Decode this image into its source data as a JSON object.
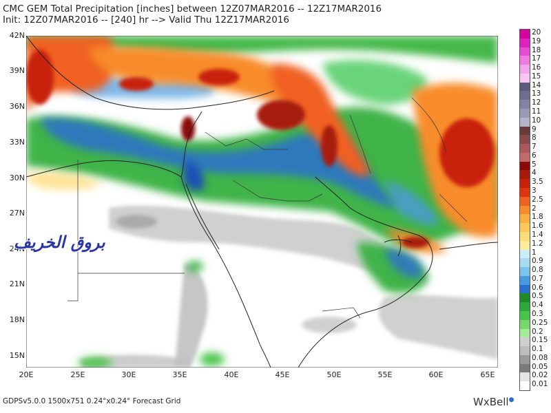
{
  "header": {
    "line1": "CMC GEM Total Precipitation [inches] between 12Z07MAR2016 -- 12Z17MAR2016",
    "line2": "Init: 12Z07MAR2016 -- [240] hr --> Valid Thu 12Z17MAR2016"
  },
  "map": {
    "lat_labels": [
      "42N",
      "39N",
      "36N",
      "33N",
      "30N",
      "27N",
      "24N",
      "21N",
      "18N",
      "15N"
    ],
    "lon_labels": [
      "20E",
      "25E",
      "30E",
      "35E",
      "40E",
      "45E",
      "50E",
      "55E",
      "60E",
      "65E"
    ],
    "watermark": "بروق الخريف"
  },
  "legend": {
    "labels": [
      "20",
      "19",
      "18",
      "17",
      "16",
      "15",
      "14",
      "13",
      "12",
      "11",
      "10",
      "9",
      "8",
      "7",
      "6",
      "5",
      "4",
      "3.5",
      "3",
      "2.5",
      "2",
      "1.8",
      "1.6",
      "1.4",
      "1.2",
      "1",
      "0.9",
      "0.8",
      "0.7",
      "0.6",
      "0.5",
      "0.4",
      "0.3",
      "0.25",
      "0.2",
      "0.15",
      "0.1",
      "0.08",
      "0.05",
      "0.02",
      "0.01"
    ],
    "colors": [
      "#d6009e",
      "#e020c0",
      "#e84cd2",
      "#ef7ae0",
      "#f4a4ea",
      "#f7c6f2",
      "#5a5a7a",
      "#6e6e8e",
      "#8484a2",
      "#9a9ab6",
      "#b4b4ca",
      "#6a3a3a",
      "#8a4a4a",
      "#a85a5a",
      "#c46a6a",
      "#8a0a0a",
      "#a81a0a",
      "#c8200a",
      "#e03410",
      "#f06020",
      "#f88c2c",
      "#fbb040",
      "#fcc85a",
      "#fcdc78",
      "#fcec9c",
      "#c8eef8",
      "#a8dcf4",
      "#7cc4ee",
      "#4a9ae0",
      "#2a6ed0",
      "#1e8a2a",
      "#2aa83a",
      "#48c44a",
      "#76d86a",
      "#a4ec9a",
      "#cfcfcf",
      "#bdbdbd",
      "#9a9a9a",
      "#7a7a7a",
      "#e4e4e4",
      "#ffffff"
    ]
  },
  "footer": {
    "text": "GDPSv5.0.0  1500x751  0.24°x0.24°  Forecast Grid",
    "brand": "WxBell"
  }
}
